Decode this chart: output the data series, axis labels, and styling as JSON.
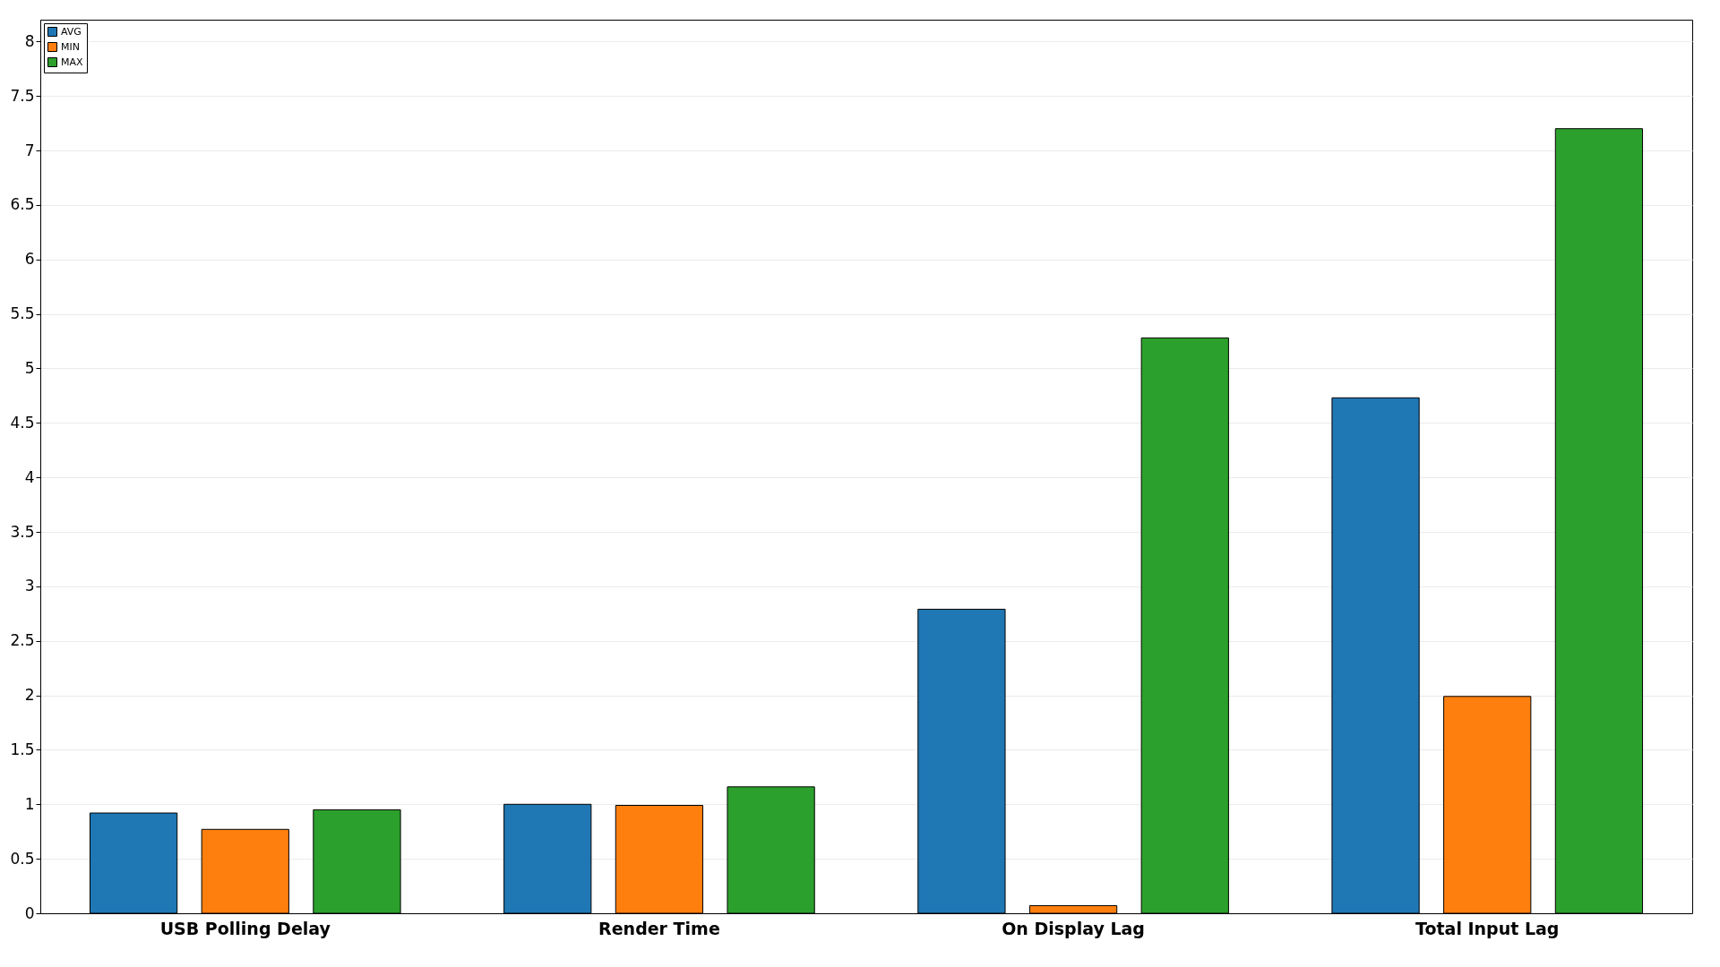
{
  "chart_data": {
    "type": "bar",
    "categories": [
      "USB Polling Delay",
      "Render Time",
      "On Display Lag",
      "Total Input Lag"
    ],
    "series": [
      {
        "name": "AVG",
        "color": "#1f77b4",
        "values": [
          0.92,
          1.0,
          2.79,
          4.73
        ]
      },
      {
        "name": "MIN",
        "color": "#ff7f0e",
        "values": [
          0.77,
          0.99,
          0.07,
          1.99
        ]
      },
      {
        "name": "MAX",
        "color": "#2ca02c",
        "values": [
          0.95,
          1.16,
          5.28,
          7.2
        ]
      }
    ],
    "ylim": [
      0,
      8.2
    ],
    "yticks": [
      0,
      0.5,
      1,
      1.5,
      2,
      2.5,
      3,
      3.5,
      4,
      4.5,
      5,
      5.5,
      6,
      6.5,
      7,
      7.5,
      8
    ],
    "grid": "y",
    "legend": "top left"
  }
}
